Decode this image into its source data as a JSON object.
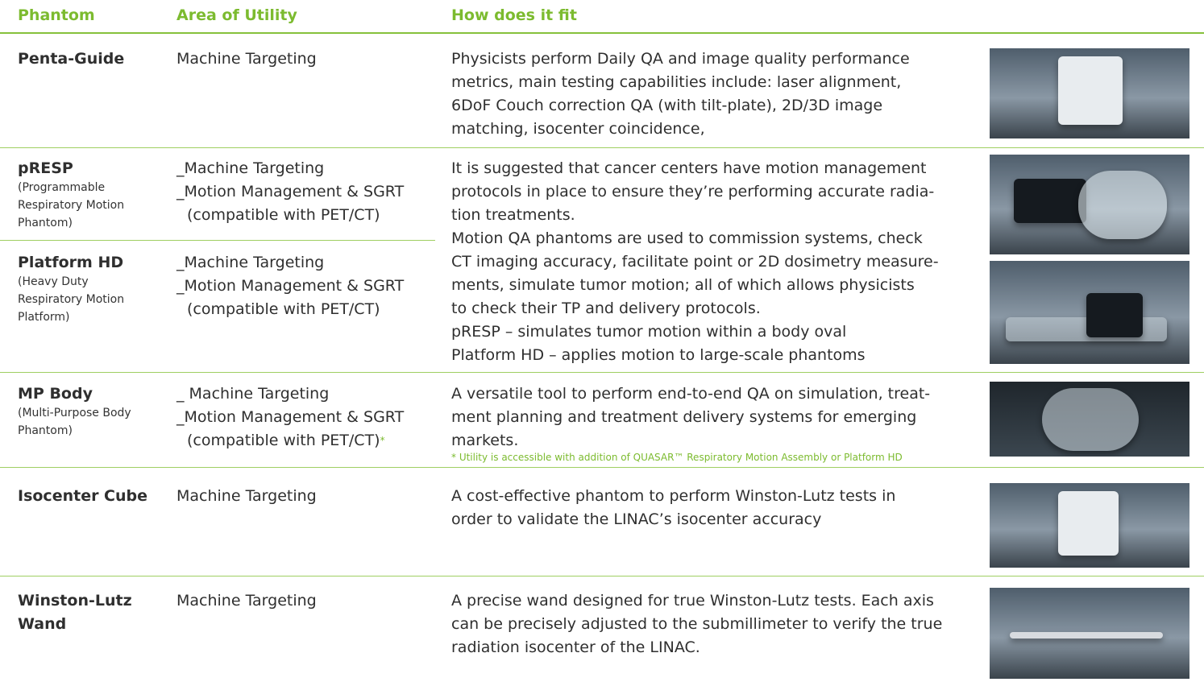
{
  "header": {
    "columns": [
      "Phantom",
      "Area of Utility",
      "How does it fit"
    ]
  },
  "rows": [
    {
      "name": "Penta-Guide",
      "utility": [
        "Machine Targeting"
      ],
      "description": [
        "Physicists perform Daily QA and image quality performance",
        "metrics, main testing capabilities include: laser alignment,",
        "6DoF Couch correction QA (with tilt-plate), 2D/3D image",
        "matching, isocenter coincidence,"
      ]
    },
    {
      "name": "pRESP",
      "subtitle": "(Programmable Respiratory Motion Phantom)",
      "utility": [
        "_Machine Targeting",
        "_Motion Management & SGRT",
        "(compatible with PET/CT)"
      ]
    },
    {
      "name": "Platform HD",
      "subtitle": "(Heavy Duty Respiratory Motion Platform)",
      "utility": [
        "_Machine Targeting",
        "_Motion Management & SGRT",
        "(compatible with PET/CT)"
      ]
    },
    {
      "name": "MP Body",
      "subtitle": "(Multi-Purpose Body Phantom)",
      "utility": [
        "_ Machine Targeting",
        "_Motion Management & SGRT",
        "(compatible with PET/CT)"
      ],
      "utility_mark": "*",
      "description": [
        "A versatile tool to perform end-to-end QA on simulation, treat-",
        "ment planning and treatment delivery systems for emerging",
        "markets."
      ],
      "note": "* Utility is accessible with addition of QUASAR™ Respiratory Motion Assembly or Platform HD"
    },
    {
      "name": "Isocenter Cube",
      "utility": [
        "Machine Targeting"
      ],
      "description": [
        "A cost-effective phantom to perform Winston-Lutz tests in",
        "order to validate the LINAC’s isocenter accuracy"
      ]
    },
    {
      "name": "Winston-Lutz Wand",
      "utility": [
        "Machine Targeting"
      ],
      "description": [
        "A precise wand designed for true Winston-Lutz tests. Each axis",
        "can be precisely adjusted to the submillimeter to verify the true",
        "radiation isocenter of the LINAC."
      ]
    }
  ],
  "shared_description": [
    "It is suggested that cancer centers have motion management",
    "protocols in place to ensure they’re performing accurate radia-",
    "tion treatments.",
    "Motion QA phantoms are used to commission systems, check",
    "CT imaging accuracy, facilitate point or 2D dosimetry measure-",
    "ments, simulate tumor motion; all of which allows physicists",
    "to check their TP and delivery protocols.",
    "pRESP – simulates tumor motion within a body oval",
    "Platform HD – applies motion to large-scale phantoms"
  ]
}
